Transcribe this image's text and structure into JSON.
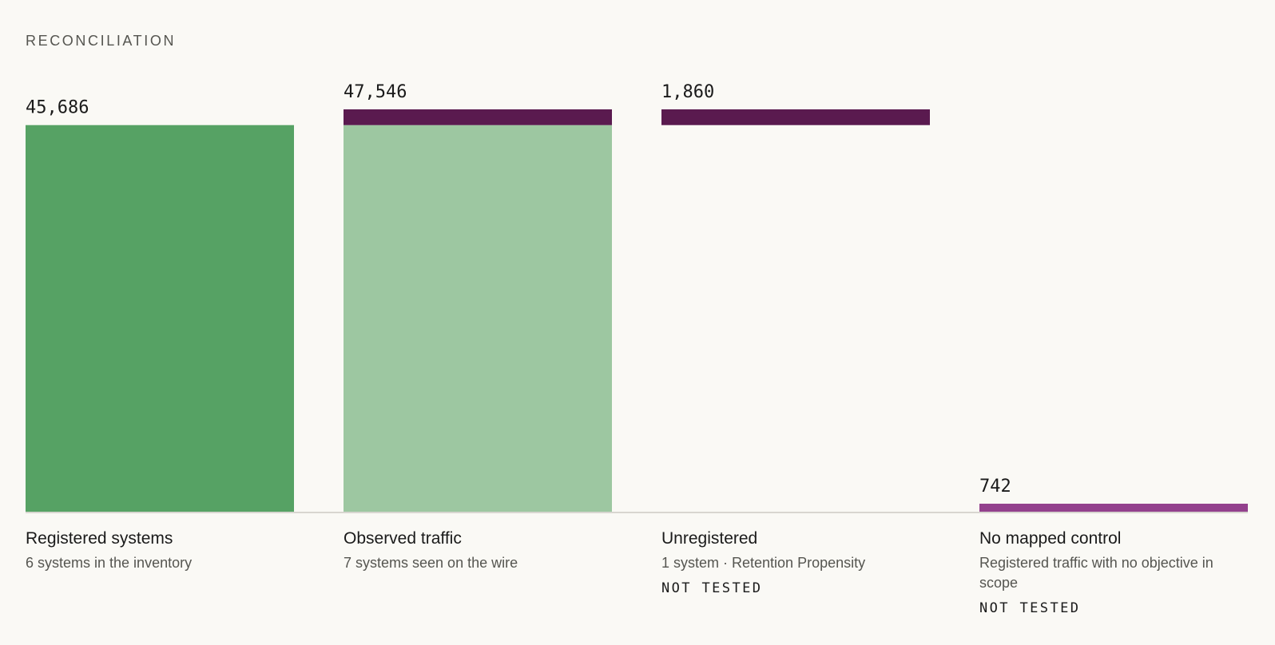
{
  "section_title": "RECONCILIATION",
  "colors": {
    "registered": "#56a264",
    "observed": "#9dc7a1",
    "unregistered": "#5a1a4f",
    "no_mapped_control": "#93418d",
    "baseline": "#d8d6d0"
  },
  "chart_data": {
    "type": "bar",
    "title": "RECONCILIATION",
    "categories": [
      "Registered systems",
      "Observed traffic",
      "Unregistered",
      "No mapped control"
    ],
    "ylim": [
      0,
      47546
    ],
    "grid": false,
    "bars": [
      {
        "category": "Registered systems",
        "value": 45686,
        "value_label": "45,686",
        "layout": "floating",
        "segments": [
          {
            "from": 0,
            "to": 45686,
            "color_key": "registered"
          }
        ]
      },
      {
        "category": "Observed traffic",
        "value": 47546,
        "value_label": "47,546",
        "layout": "stacked",
        "segments": [
          {
            "from": 0,
            "to": 45686,
            "color_key": "observed"
          },
          {
            "from": 45686,
            "to": 47546,
            "color_key": "unregistered"
          }
        ]
      },
      {
        "category": "Unregistered",
        "value": 1860,
        "value_label": "1,860",
        "layout": "floating",
        "segments": [
          {
            "from": 45686,
            "to": 47546,
            "color_key": "unregistered"
          }
        ]
      },
      {
        "category": "No mapped control",
        "value": 742,
        "value_label": "742",
        "layout": "floating",
        "segments": [
          {
            "from": 0,
            "to": 742,
            "color_key": "no_mapped_control"
          }
        ]
      }
    ]
  },
  "columns": [
    {
      "title": "Registered systems",
      "subtitle": "6 systems in the inventory",
      "status": ""
    },
    {
      "title": "Observed traffic",
      "subtitle": "7 systems seen on the wire",
      "status": ""
    },
    {
      "title": "Unregistered",
      "subtitle": "1 system · Retention Propensity",
      "status": "NOT TESTED"
    },
    {
      "title": "No mapped control",
      "subtitle": "Registered traffic with no objective in scope",
      "status": "NOT TESTED"
    }
  ]
}
